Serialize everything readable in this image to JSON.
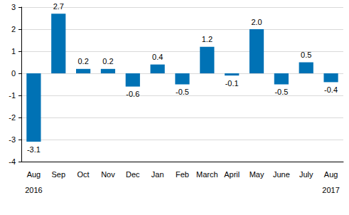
{
  "chart_data": {
    "type": "bar",
    "categories": [
      "Aug",
      "Sep",
      "Oct",
      "Nov",
      "Dec",
      "Jan",
      "Feb",
      "March",
      "April",
      "May",
      "June",
      "July",
      "Aug"
    ],
    "values": [
      -3.1,
      2.7,
      0.2,
      0.2,
      -0.6,
      0.4,
      -0.5,
      1.2,
      -0.1,
      2.0,
      -0.5,
      0.5,
      -0.4
    ],
    "value_labels": [
      "-3.1",
      "2.7",
      "0.2",
      "0.2",
      "-0.6",
      "0.4",
      "-0.5",
      "1.2",
      "-0.1",
      "2.0",
      "-0.5",
      "0.5",
      "-0.4"
    ],
    "data_labels": true,
    "color": "#0072b5",
    "ylim": [
      -4,
      3
    ],
    "yticks": [
      -4,
      -3,
      -2,
      -1,
      0,
      1,
      2,
      3
    ],
    "grid": true,
    "annotations": [
      {
        "text": "2016",
        "index": 0
      },
      {
        "text": "2017",
        "index": 12
      }
    ]
  }
}
